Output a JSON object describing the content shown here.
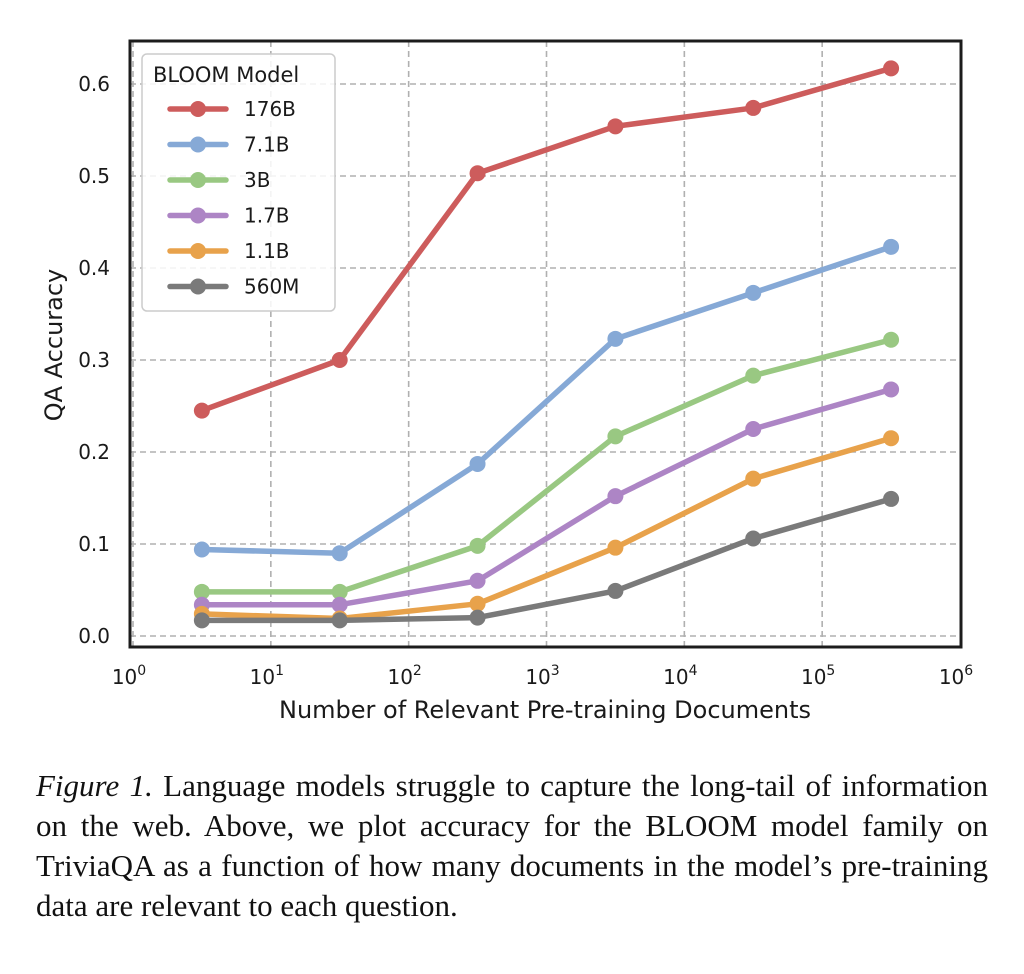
{
  "chart_data": {
    "type": "line",
    "title": "",
    "xlabel": "Number of Relevant Pre-training Documents",
    "ylabel": "QA Accuracy",
    "xscale": "log",
    "xlim": [
      1,
      1000000
    ],
    "ylim": [
      -0.005,
      0.655
    ],
    "grid": true,
    "x_ticks": [
      {
        "value": 1,
        "base": "10",
        "exp": "0"
      },
      {
        "value": 10,
        "base": "10",
        "exp": "1"
      },
      {
        "value": 100,
        "base": "10",
        "exp": "2"
      },
      {
        "value": 1000,
        "base": "10",
        "exp": "3"
      },
      {
        "value": 10000,
        "base": "10",
        "exp": "4"
      },
      {
        "value": 100000,
        "base": "10",
        "exp": "5"
      },
      {
        "value": 1000000,
        "base": "10",
        "exp": "6"
      }
    ],
    "y_ticks": [
      {
        "value": 0.0,
        "label": "0.0"
      },
      {
        "value": 0.1,
        "label": "0.1"
      },
      {
        "value": 0.2,
        "label": "0.2"
      },
      {
        "value": 0.3,
        "label": "0.3"
      },
      {
        "value": 0.4,
        "label": "0.4"
      },
      {
        "value": 0.5,
        "label": "0.5"
      },
      {
        "value": 0.6,
        "label": "0.6"
      }
    ],
    "x": [
      3.16,
      31.6,
      316,
      3162,
      31623,
      316228
    ],
    "legend": {
      "title": "BLOOM Model",
      "placement": "top-left"
    },
    "series": [
      {
        "name": "176B",
        "color": "#cd5c5c",
        "values": [
          0.245,
          0.3,
          0.503,
          0.554,
          0.574,
          0.617
        ]
      },
      {
        "name": "7.1B",
        "color": "#86a9d6",
        "values": [
          0.094,
          0.09,
          0.187,
          0.323,
          0.373,
          0.423
        ]
      },
      {
        "name": "3B",
        "color": "#99c882",
        "values": [
          0.048,
          0.048,
          0.098,
          0.217,
          0.283,
          0.322
        ]
      },
      {
        "name": "1.7B",
        "color": "#ad85c5",
        "values": [
          0.034,
          0.034,
          0.06,
          0.152,
          0.225,
          0.268
        ]
      },
      {
        "name": "1.1B",
        "color": "#e8a24b",
        "values": [
          0.024,
          0.019,
          0.035,
          0.096,
          0.171,
          0.215
        ]
      },
      {
        "name": "560M",
        "color": "#7a7a7a",
        "values": [
          0.017,
          0.017,
          0.02,
          0.049,
          0.106,
          0.149
        ]
      }
    ]
  },
  "caption": {
    "label": "Figure 1.",
    "text": " Language models struggle to capture the long-tail of information on the web. Above, we plot accuracy for the BLOOM model family on TriviaQA as a function of how many documents in the model’s pre-training data are relevant to each question."
  }
}
